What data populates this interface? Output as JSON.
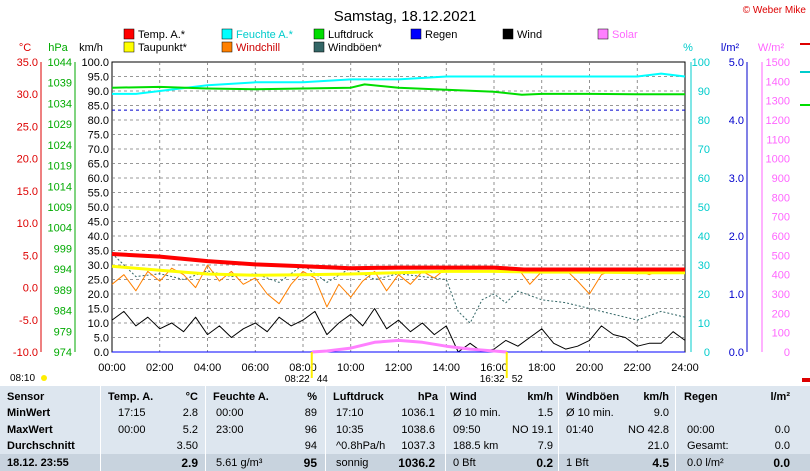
{
  "title": "Samstag, 18.12.2021",
  "copyright": "© Weber Mike",
  "colors": {
    "temp": "#ff0000",
    "humidity": "#00ffff",
    "pressure": "#00dd00",
    "dewpoint": "#ffff00",
    "windchill": "#ff8000",
    "gust": "#336666",
    "rain": "#0000ff",
    "wind": "#000000",
    "solar": "#ff80ff",
    "pressure_tick": "#00b000",
    "grid": "#777777"
  },
  "legend": {
    "temp": "Temp. A.*",
    "humidity": "Feuchte A.*",
    "pressure": "Luftdruck",
    "dewpoint": "Taupunkt*",
    "windchill": "Windchill",
    "gust": "Windböen*",
    "rain": "Regen",
    "wind": "Wind",
    "solar": "Solar"
  },
  "axes": {
    "temp_unit": "°C",
    "pressure_unit": "hPa",
    "wind_unit": "km/h",
    "humidity_unit": "%",
    "rain_unit": "l/m²",
    "solar_unit": "W/m²",
    "temp_ticks": [
      "35.0",
      "30.0",
      "25.0",
      "20.0",
      "15.0",
      "10.0",
      "5.0",
      "0.0",
      "-5.0",
      "-10.0"
    ],
    "pressure_ticks": [
      "1044",
      "1039",
      "1034",
      "1029",
      "1024",
      "1019",
      "1014",
      "1009",
      "1004",
      "999",
      "994",
      "989",
      "984",
      "979",
      "974"
    ],
    "wind_ticks": [
      "100.0",
      "95.0",
      "90.0",
      "85.0",
      "80.0",
      "75.0",
      "70.0",
      "65.0",
      "60.0",
      "55.0",
      "50.0",
      "45.0",
      "40.0",
      "35.0",
      "30.0",
      "25.0",
      "20.0",
      "15.0",
      "10.0",
      "5.0",
      "0.0"
    ],
    "humidity_ticks": [
      "100",
      "90",
      "80",
      "70",
      "60",
      "50",
      "40",
      "30",
      "20",
      "10",
      "0"
    ],
    "rain_ticks": [
      "5.0",
      "4.0",
      "3.0",
      "2.0",
      "1.0",
      "0.0"
    ],
    "solar_ticks": [
      "1500",
      "1400",
      "1300",
      "1200",
      "1100",
      "1000",
      "900",
      "800",
      "700",
      "600",
      "500",
      "400",
      "300",
      "200",
      "100",
      "0"
    ],
    "time_ticks": [
      "00:00",
      "02:00",
      "04:00",
      "06:00",
      "08:00",
      "10:00",
      "12:00",
      "14:00",
      "16:00",
      "18:00",
      "20:00",
      "22:00",
      "24:00"
    ]
  },
  "sun": {
    "left_marker": "08:10",
    "sunrise": "08:22",
    "sunrise_az": "44",
    "sunset": "16:32",
    "sunset_az": "52"
  },
  "chart_data": {
    "type": "line",
    "x_unit": "hours",
    "xlim": [
      0,
      24
    ],
    "series": [
      {
        "name": "Temp. A.*",
        "axis": "°C",
        "x": [
          0,
          2,
          4,
          6,
          8,
          10,
          12,
          14,
          16,
          17.25,
          18,
          20,
          22,
          24
        ],
        "values": [
          5.2,
          4.8,
          4.1,
          3.6,
          3.3,
          3.0,
          3.1,
          3.1,
          3.1,
          2.8,
          2.8,
          2.8,
          2.8,
          2.8
        ]
      },
      {
        "name": "Feuchte A.*",
        "axis": "%",
        "x": [
          0,
          1,
          2,
          3,
          4,
          6,
          8,
          10,
          12,
          14,
          16,
          18,
          20,
          22,
          23,
          24
        ],
        "values": [
          89,
          89,
          90,
          91,
          92,
          93,
          93,
          94,
          94,
          95,
          95,
          95,
          95,
          95,
          96,
          95
        ]
      },
      {
        "name": "Luftdruck",
        "axis": "hPa",
        "x": [
          0,
          2,
          4,
          6,
          8,
          10,
          10.58,
          12,
          14,
          16,
          17.17,
          18,
          20,
          22,
          24
        ],
        "values": [
          1037.8,
          1038.0,
          1037.6,
          1037.4,
          1037.6,
          1037.8,
          1038.6,
          1037.8,
          1037.3,
          1036.8,
          1036.1,
          1036.3,
          1036.3,
          1036.2,
          1036.2
        ]
      },
      {
        "name": "Taupunkt*",
        "axis": "°C",
        "x": [
          0,
          2,
          4,
          6,
          8,
          10,
          12,
          14,
          16,
          18,
          20,
          22,
          24
        ],
        "values": [
          3.3,
          2.7,
          2.1,
          1.9,
          2.0,
          2.1,
          2.3,
          2.5,
          2.5,
          2.4,
          2.4,
          2.3,
          2.3
        ]
      },
      {
        "name": "Windchill",
        "axis": "°C",
        "x": [
          0,
          0.5,
          1,
          1.5,
          2,
          2.5,
          3,
          3.5,
          4,
          4.5,
          5,
          5.5,
          6,
          6.5,
          7,
          7.5,
          8,
          8.5,
          9,
          9.5,
          10,
          10.5,
          11,
          11.5,
          12,
          12.5,
          13,
          13.5,
          14,
          15,
          16,
          17,
          17.5,
          18,
          19,
          19.5,
          20,
          20.5,
          21,
          22,
          22.5,
          23,
          24
        ],
        "values": [
          0.5,
          2.0,
          -0.5,
          2.5,
          1.0,
          3.0,
          2.0,
          0.0,
          3.5,
          1.0,
          2.5,
          0.5,
          1.5,
          -1.0,
          -2.5,
          0.5,
          2.5,
          1.5,
          -3.0,
          0.5,
          -1.5,
          1.0,
          2.5,
          -0.5,
          2.0,
          0.5,
          2.5,
          1.5,
          3.0,
          3.0,
          3.0,
          3.0,
          0.5,
          2.5,
          2.8,
          1.0,
          -1.0,
          2.0,
          2.8,
          2.8,
          2.0,
          2.8,
          2.8
        ]
      },
      {
        "name": "Wind",
        "axis": "km/h",
        "x": [
          0,
          0.5,
          1,
          1.5,
          2,
          2.5,
          3,
          3.5,
          4,
          4.5,
          5,
          5.5,
          6,
          6.5,
          7,
          7.5,
          8,
          8.5,
          9,
          9.5,
          10,
          10.5,
          11,
          11.5,
          12,
          12.5,
          13,
          13.5,
          14,
          14.5,
          15,
          15.5,
          16,
          16.5,
          17,
          17.5,
          18,
          18.5,
          19,
          19.5,
          20,
          20.5,
          21,
          21.5,
          22,
          22.5,
          23,
          23.5,
          24
        ],
        "values": [
          11,
          14,
          9,
          12,
          8,
          10,
          7,
          12,
          6,
          9,
          5,
          8,
          10,
          7,
          12,
          9,
          11,
          14,
          6,
          10,
          13,
          9,
          15,
          8,
          11,
          7,
          10,
          6,
          9,
          0,
          3,
          0,
          1,
          4,
          2,
          5,
          8,
          3,
          1,
          2,
          4,
          9,
          6,
          5,
          2,
          3,
          3,
          7,
          4
        ]
      },
      {
        "name": "Windböen*",
        "axis": "km/h",
        "x": [
          0,
          1,
          2,
          3,
          4,
          5,
          6,
          7,
          8,
          9,
          10,
          11,
          12,
          13,
          14,
          14.5,
          15,
          15.5,
          16,
          16.5,
          17,
          18,
          19,
          19.5,
          20,
          21,
          22,
          23,
          24
        ],
        "values": [
          34,
          26,
          27,
          25,
          28,
          26,
          27,
          24,
          30,
          24,
          29,
          25,
          27,
          26,
          25,
          14,
          10,
          18,
          20,
          17,
          21,
          18,
          17,
          16,
          15,
          13,
          11,
          14,
          12
        ]
      },
      {
        "name": "Regen",
        "axis": "l/m²",
        "x": [
          0,
          24
        ],
        "values": [
          0.0,
          0.0
        ]
      },
      {
        "name": "Solar",
        "axis": "W/m²",
        "x": [
          8.37,
          9,
          10,
          11,
          12,
          13,
          14,
          15,
          16,
          16.53
        ],
        "values": [
          0,
          5,
          20,
          50,
          60,
          50,
          30,
          15,
          5,
          0
        ]
      },
      {
        "name": "Luftdruck Tendenz",
        "axis": "hPa",
        "x": [
          0,
          24
        ],
        "values": [
          1032.4,
          1032.4
        ]
      }
    ]
  },
  "stats": {
    "headers": [
      "Sensor",
      "Temp. A.",
      "°C",
      "Feuchte A.",
      "%",
      "Luftdruck",
      "hPa",
      "Wind",
      "km/h",
      "Windböen",
      "km/h",
      "Regen",
      "l/m²"
    ],
    "rows": [
      {
        "label": "MinWert",
        "t_time": "17:15",
        "t_val": "2.8",
        "h_time": "00:00",
        "h_val": "89",
        "p_time": "17:10",
        "p_val": "1036.1",
        "w_label": "Ø 10 min.",
        "w_val": "1.5",
        "g_label": "Ø 10 min.",
        "g_val": "9.0",
        "r_label": "",
        "r_val": ""
      },
      {
        "label": "MaxWert",
        "t_time": "00:00",
        "t_val": "5.2",
        "h_time": "23:00",
        "h_val": "96",
        "p_time": "10:35",
        "p_val": "1038.6",
        "w_label": "09:50",
        "w_dir": "NO 19.1",
        "g_label": "01:40",
        "g_dir": "NO 42.8",
        "r_label": "00:00",
        "r_val": "0.0"
      },
      {
        "label": "Durchschnitt",
        "t_time": "",
        "t_val": "3.50",
        "h_time": "",
        "h_val": "94",
        "p_time": "^0.8hPa/h",
        "p_val": "1037.3",
        "w_label": "188.5 km",
        "w_val": "7.9",
        "g_label": "",
        "g_val": "21.0",
        "r_label": "Gesamt:",
        "r_val": "0.0"
      },
      {
        "label": "18.12. 23:55",
        "t_time": "",
        "t_val": "2.9",
        "h_time": "5.61 g/m³",
        "h_val": "95",
        "p_time": "sonnig",
        "p_val": "1036.2",
        "w_label": "0 Bft",
        "w_val": "0.2",
        "g_label": "1 Bft",
        "g_val": "4.5",
        "r_label": "0.0 l/m²",
        "r_val": "0.0"
      }
    ]
  }
}
